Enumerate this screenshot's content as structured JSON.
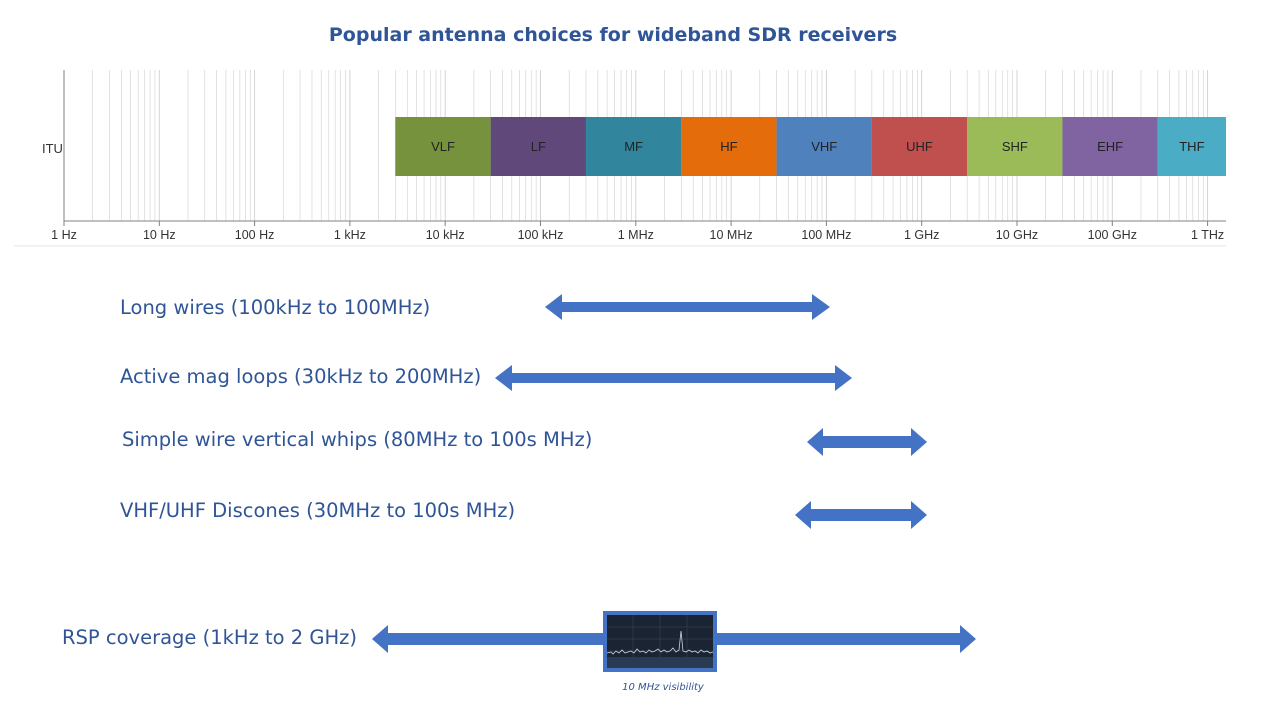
{
  "title": "Popular antenna choices for wideband SDR receivers",
  "spectrum": {
    "row_label": "ITU",
    "decades": [
      "1 Hz",
      "10 Hz",
      "100 Hz",
      "1 kHz",
      "10 kHz",
      "100 kHz",
      "1 MHz",
      "10 MHz",
      "100 MHz",
      "1 GHz",
      "10 GHz",
      "100 GHz",
      "1 THz"
    ],
    "bands": [
      {
        "label": "VLF",
        "color": "#76923C"
      },
      {
        "label": "LF",
        "color": "#60497A"
      },
      {
        "label": "MF",
        "color": "#31859C"
      },
      {
        "label": "HF",
        "color": "#E46C0A"
      },
      {
        "label": "VHF",
        "color": "#4F81BD"
      },
      {
        "label": "UHF",
        "color": "#C0504D"
      },
      {
        "label": "SHF",
        "color": "#9BBB59"
      },
      {
        "label": "EHF",
        "color": "#8064A2"
      },
      {
        "label": "THF",
        "color": "#4BACC6"
      }
    ]
  },
  "antennas": [
    {
      "label": "Long wires (100kHz to 100MHz)"
    },
    {
      "label": "Active mag loops (30kHz to 200MHz)"
    },
    {
      "label": "Simple wire vertical whips (80MHz to 100s MHz)"
    },
    {
      "label": "VHF/UHF Discones (30MHz to 100s MHz)"
    }
  ],
  "rsp": {
    "label": "RSP coverage (1kHz to 2 GHz)",
    "screen_caption": "10 MHz visibility"
  },
  "colors": {
    "title": "#2F5597",
    "arrow": "#4472C4",
    "grid": "#d0d0d0",
    "axis": "#808080"
  }
}
